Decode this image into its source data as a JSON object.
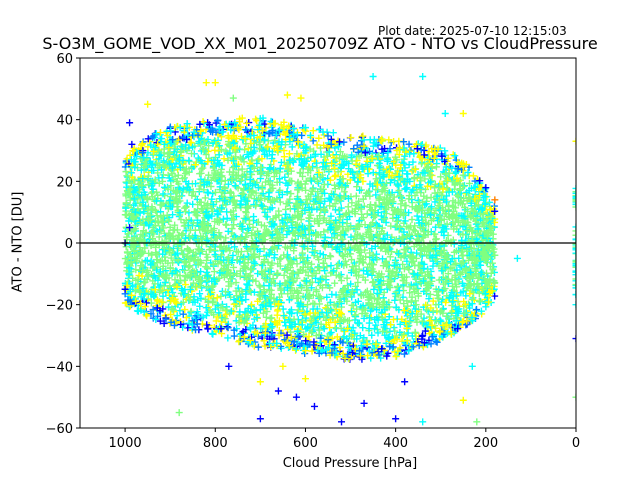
{
  "header": {
    "plot_date": "Plot date: 2025-07-10 12:15:03",
    "title": "S-O3M_GOME_VOD_XX_M01_20250709Z ATO - NTO vs CloudPressure"
  },
  "chart_data": {
    "type": "scatter",
    "title": "S-O3M_GOME_VOD_XX_M01_20250709Z ATO - NTO vs CloudPressure",
    "xlabel": "Cloud Pressure [hPa]",
    "ylabel": "ATO - NTO [DU]",
    "xlim": [
      1100,
      0
    ],
    "ylim": [
      -60,
      60
    ],
    "x_ticks": [
      1000,
      800,
      600,
      400,
      200,
      0
    ],
    "y_ticks": [
      -60,
      -40,
      -20,
      0,
      20,
      40,
      60
    ],
    "reference_line_y": 0,
    "marker": "+",
    "grid": false,
    "colors": [
      "#00008f",
      "#0000ff",
      "#0080ff",
      "#00ffff",
      "#80ff80",
      "#ffff00",
      "#ff8000"
    ],
    "density_band": {
      "x_range": [
        1000,
        180
      ],
      "upper_edge": [
        [
          1000,
          28
        ],
        [
          950,
          35
        ],
        [
          900,
          38
        ],
        [
          800,
          40
        ],
        [
          700,
          41
        ],
        [
          600,
          38
        ],
        [
          500,
          35
        ],
        [
          400,
          34
        ],
        [
          300,
          31
        ],
        [
          250,
          27
        ],
        [
          200,
          18
        ],
        [
          180,
          12
        ]
      ],
      "lower_edge": [
        [
          1000,
          -20
        ],
        [
          950,
          -24
        ],
        [
          900,
          -27
        ],
        [
          800,
          -30
        ],
        [
          700,
          -34
        ],
        [
          600,
          -36
        ],
        [
          500,
          -38
        ],
        [
          400,
          -37
        ],
        [
          300,
          -32
        ],
        [
          250,
          -28
        ],
        [
          200,
          -22
        ],
        [
          180,
          -18
        ]
      ]
    },
    "sample_points": [
      {
        "x": 990,
        "y": 39,
        "c": 1
      },
      {
        "x": 985,
        "y": 32,
        "c": 1
      },
      {
        "x": 950,
        "y": 45,
        "c": 5
      },
      {
        "x": 820,
        "y": 52,
        "c": 5
      },
      {
        "x": 800,
        "y": 52,
        "c": 5
      },
      {
        "x": 760,
        "y": 47,
        "c": 4
      },
      {
        "x": 640,
        "y": 48,
        "c": 5
      },
      {
        "x": 610,
        "y": 47,
        "c": 5
      },
      {
        "x": 450,
        "y": 54,
        "c": 3
      },
      {
        "x": 340,
        "y": 54,
        "c": 3
      },
      {
        "x": 290,
        "y": 42,
        "c": 3
      },
      {
        "x": 250,
        "y": 42,
        "c": 5
      },
      {
        "x": 200,
        "y": 15,
        "c": 3
      },
      {
        "x": 180,
        "y": 14,
        "c": 6
      },
      {
        "x": 130,
        "y": -5,
        "c": 3
      },
      {
        "x": 1000,
        "y": 0,
        "c": 0
      },
      {
        "x": 1000,
        "y": -15,
        "c": 1
      },
      {
        "x": 990,
        "y": 5,
        "c": 1
      },
      {
        "x": 0,
        "y": 33,
        "c": 5
      },
      {
        "x": 0,
        "y": 15,
        "c": 3
      },
      {
        "x": 0,
        "y": -20,
        "c": 3
      },
      {
        "x": 0,
        "y": -31,
        "c": 1
      },
      {
        "x": 0,
        "y": -50,
        "c": 4
      },
      {
        "x": 770,
        "y": -40,
        "c": 1
      },
      {
        "x": 700,
        "y": -57,
        "c": 1
      },
      {
        "x": 660,
        "y": -48,
        "c": 1
      },
      {
        "x": 620,
        "y": -50,
        "c": 1
      },
      {
        "x": 580,
        "y": -53,
        "c": 1
      },
      {
        "x": 520,
        "y": -58,
        "c": 1
      },
      {
        "x": 470,
        "y": -52,
        "c": 1
      },
      {
        "x": 400,
        "y": -57,
        "c": 1
      },
      {
        "x": 380,
        "y": -45,
        "c": 1
      },
      {
        "x": 340,
        "y": -58,
        "c": 3
      },
      {
        "x": 220,
        "y": -58,
        "c": 4
      },
      {
        "x": 880,
        "y": -55,
        "c": 4
      },
      {
        "x": 700,
        "y": -45,
        "c": 5
      },
      {
        "x": 650,
        "y": -40,
        "c": 5
      },
      {
        "x": 600,
        "y": -44,
        "c": 5
      },
      {
        "x": 250,
        "y": -51,
        "c": 5
      },
      {
        "x": 230,
        "y": -40,
        "c": 3
      }
    ]
  }
}
